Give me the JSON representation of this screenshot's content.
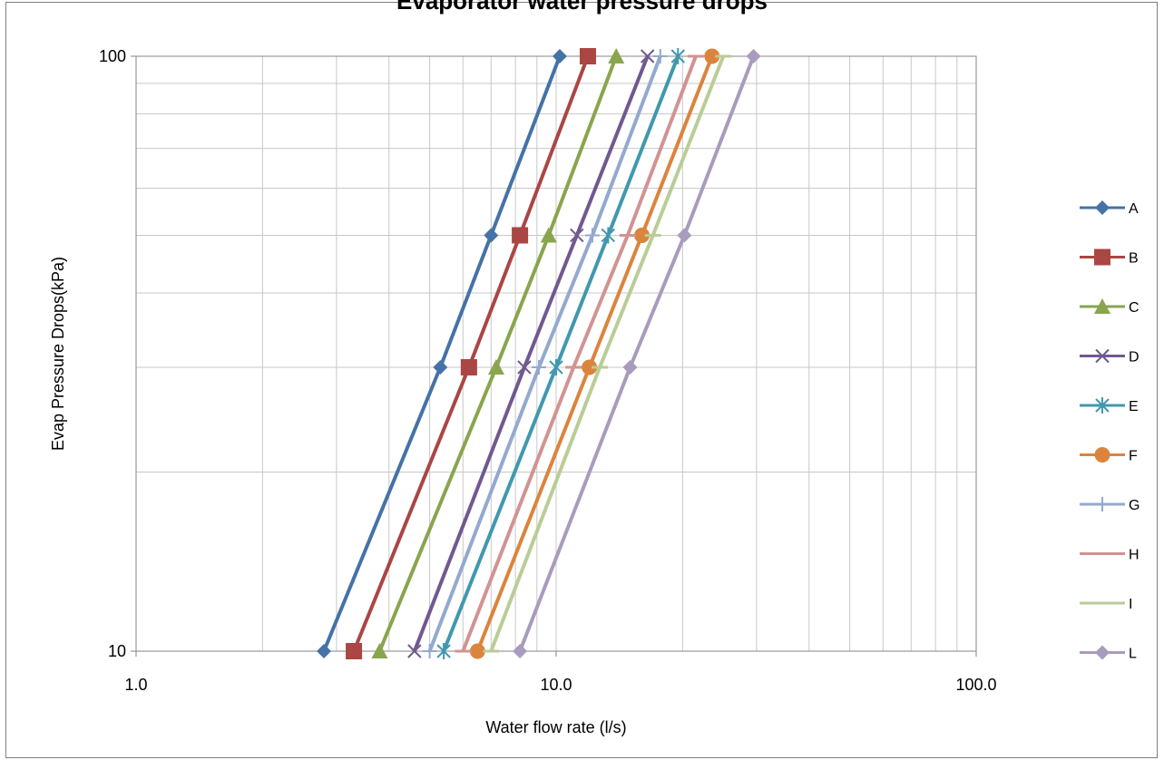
{
  "chart_data": {
    "type": "line",
    "title": "Evaporator water pressure drops",
    "xlabel": "Water flow rate (l/s)",
    "ylabel": "Evap Pressure Drops(kPa)",
    "x_scale": "log",
    "y_scale": "log",
    "xlim": [
      1,
      100
    ],
    "ylim": [
      10,
      100
    ],
    "x_ticks": [
      "1.0",
      "10.0",
      "100.0"
    ],
    "y_ticks": [
      "10",
      "100"
    ],
    "grid": true,
    "legend_position": "right",
    "series": [
      {
        "name": "A",
        "color": "#4572A7",
        "marker": "diamond",
        "points": [
          [
            2.8,
            10
          ],
          [
            5.3,
            30
          ],
          [
            7.0,
            50
          ],
          [
            10.2,
            100
          ]
        ]
      },
      {
        "name": "B",
        "color": "#AA4643",
        "marker": "square",
        "points": [
          [
            3.3,
            10
          ],
          [
            6.2,
            30
          ],
          [
            8.2,
            50
          ],
          [
            11.9,
            100
          ]
        ]
      },
      {
        "name": "C",
        "color": "#89A54E",
        "marker": "triangle",
        "points": [
          [
            3.8,
            10
          ],
          [
            7.2,
            30
          ],
          [
            9.6,
            50
          ],
          [
            13.9,
            100
          ]
        ]
      },
      {
        "name": "D",
        "color": "#71588F",
        "marker": "x",
        "points": [
          [
            4.6,
            10
          ],
          [
            8.4,
            30
          ],
          [
            11.2,
            50
          ],
          [
            16.5,
            100
          ]
        ]
      },
      {
        "name": "E",
        "color": "#4198AF",
        "marker": "star",
        "points": [
          [
            5.4,
            10
          ],
          [
            10.0,
            30
          ],
          [
            13.3,
            50
          ],
          [
            19.5,
            100
          ]
        ]
      },
      {
        "name": "F",
        "color": "#DB843D",
        "marker": "circle",
        "points": [
          [
            6.5,
            10
          ],
          [
            12.0,
            30
          ],
          [
            16.0,
            50
          ],
          [
            23.5,
            100
          ]
        ]
      },
      {
        "name": "G",
        "color": "#93A9CF",
        "marker": "plus",
        "points": [
          [
            5.0,
            10
          ],
          [
            9.1,
            30
          ],
          [
            12.2,
            50
          ],
          [
            17.7,
            100
          ]
        ]
      },
      {
        "name": "H",
        "color": "#D19392",
        "marker": "dash",
        "points": [
          [
            6.0,
            10
          ],
          [
            11.0,
            30
          ],
          [
            14.8,
            50
          ],
          [
            21.5,
            100
          ]
        ]
      },
      {
        "name": "I",
        "color": "#B9CD96",
        "marker": "dash",
        "points": [
          [
            7.0,
            10
          ],
          [
            12.7,
            30
          ],
          [
            17.0,
            50
          ],
          [
            25.0,
            100
          ]
        ]
      },
      {
        "name": "L",
        "color": "#A99BBD",
        "marker": "diamond",
        "points": [
          [
            8.2,
            10
          ],
          [
            15.0,
            30
          ],
          [
            20.2,
            50
          ],
          [
            29.5,
            100
          ]
        ]
      }
    ]
  }
}
